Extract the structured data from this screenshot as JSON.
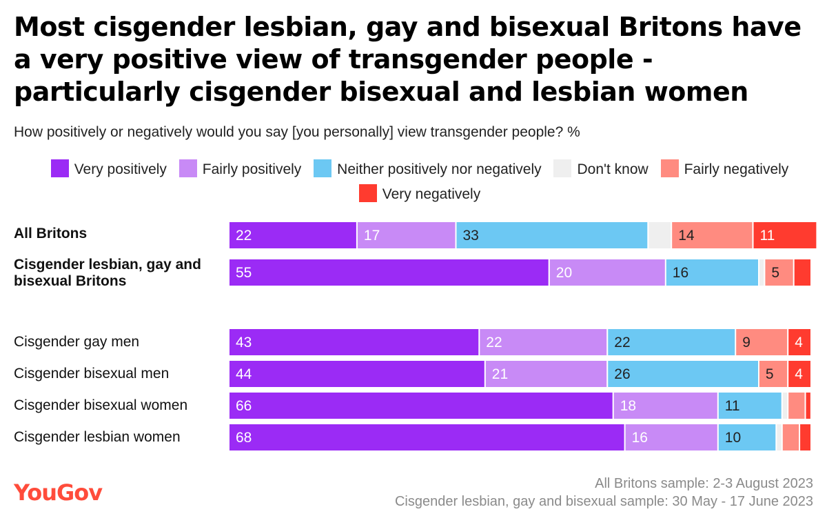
{
  "title": "Most cisgender lesbian, gay and bisexual Britons have a very positive view of transgender people - particularly cisgender bisexual and lesbian women",
  "subtitle": "How positively or negatively would you say [you personally] view transgender people? %",
  "colors": {
    "very_positively": "#9b2bf5",
    "fairly_positively": "#c88af6",
    "neither": "#6cc8f3",
    "dont_know": "#efefef",
    "fairly_negatively": "#ff8b80",
    "very_negatively": "#ff3b2f"
  },
  "chart_data": {
    "type": "bar",
    "orientation": "horizontal",
    "stacked": true,
    "xlim": [
      0,
      100
    ],
    "categories": [
      "All Britons",
      "Cisgender lesbian, gay and bisexual Britons",
      "Cisgender gay men",
      "Cisgender bisexual men",
      "Cisgender bisexual women",
      "Cisgender lesbian women"
    ],
    "series": [
      {
        "name": "Very positively",
        "color_key": "very_positively",
        "values": [
          22,
          55,
          43,
          44,
          66,
          68
        ]
      },
      {
        "name": "Fairly positively",
        "color_key": "fairly_positively",
        "values": [
          17,
          20,
          22,
          21,
          18,
          16
        ]
      },
      {
        "name": "Neither positively nor negatively",
        "color_key": "neither",
        "values": [
          33,
          16,
          22,
          26,
          11,
          10
        ]
      },
      {
        "name": "Don't know",
        "color_key": "dont_know",
        "values": [
          4,
          1,
          0,
          0,
          1,
          1
        ]
      },
      {
        "name": "Fairly negatively",
        "color_key": "fairly_negatively",
        "values": [
          14,
          5,
          9,
          5,
          3,
          3
        ]
      },
      {
        "name": "Very negatively",
        "color_key": "very_negatively",
        "values": [
          11,
          3,
          4,
          4,
          1,
          2
        ]
      }
    ],
    "labels_shown_min": 4
  },
  "rows": [
    {
      "label": "All Britons",
      "bold": true
    },
    {
      "label": "Cisgender lesbian, gay and bisexual Britons",
      "bold": true
    },
    {
      "label": "Cisgender gay men",
      "bold": false
    },
    {
      "label": "Cisgender bisexual men",
      "bold": false
    },
    {
      "label": "Cisgender bisexual women",
      "bold": false
    },
    {
      "label": "Cisgender lesbian women",
      "bold": false
    }
  ],
  "legend": [
    {
      "label": "Very positively",
      "color_key": "very_positively"
    },
    {
      "label": "Fairly positively",
      "color_key": "fairly_positively"
    },
    {
      "label": "Neither positively nor negatively",
      "color_key": "neither"
    },
    {
      "label": "Don't know",
      "color_key": "dont_know"
    },
    {
      "label": "Fairly negatively",
      "color_key": "fairly_negatively"
    },
    {
      "label": "Very negatively",
      "color_key": "very_negatively"
    }
  ],
  "footer": {
    "logo": "YouGov",
    "note_1": "All Britons sample: 2-3 August 2023",
    "note_2": "Cisgender lesbian, gay and bisexual sample: 30 May - 17 June 2023"
  }
}
